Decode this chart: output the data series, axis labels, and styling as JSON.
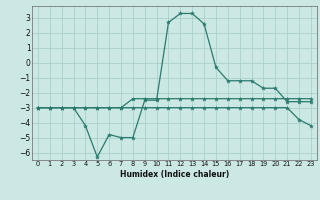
{
  "title": "",
  "xlabel": "Humidex (Indice chaleur)",
  "xlim": [
    -0.5,
    23.5
  ],
  "ylim": [
    -6.5,
    3.8
  ],
  "yticks": [
    3,
    2,
    1,
    0,
    -1,
    -2,
    -3,
    -4,
    -5,
    -6
  ],
  "xticks": [
    0,
    1,
    2,
    3,
    4,
    5,
    6,
    7,
    8,
    9,
    10,
    11,
    12,
    13,
    14,
    15,
    16,
    17,
    18,
    19,
    20,
    21,
    22,
    23
  ],
  "background_color": "#cce8e4",
  "grid_color": "#aacfca",
  "line_color": "#2a7a6e",
  "line1": [
    -3,
    -3,
    -3,
    -3,
    -4.2,
    -6.3,
    -4.8,
    -5.0,
    -5.0,
    -2.5,
    -2.5,
    2.7,
    3.3,
    3.3,
    2.6,
    -0.3,
    -1.2,
    -1.2,
    -1.2,
    -1.7,
    -1.7,
    -2.6,
    -2.6,
    -2.6
  ],
  "line2": [
    -3,
    -3,
    -3,
    -3,
    -3,
    -3,
    -3,
    -3,
    -2.4,
    -2.4,
    -2.4,
    -2.4,
    -2.4,
    -2.4,
    -2.4,
    -2.4,
    -2.4,
    -2.4,
    -2.4,
    -2.4,
    -2.4,
    -2.4,
    -2.4,
    -2.4
  ],
  "line3": [
    -3,
    -3,
    -3,
    -3,
    -3,
    -3,
    -3,
    -3,
    -3,
    -3,
    -3,
    -3,
    -3,
    -3,
    -3,
    -3,
    -3,
    -3,
    -3,
    -3,
    -3,
    -3,
    -3.8,
    -4.2
  ]
}
